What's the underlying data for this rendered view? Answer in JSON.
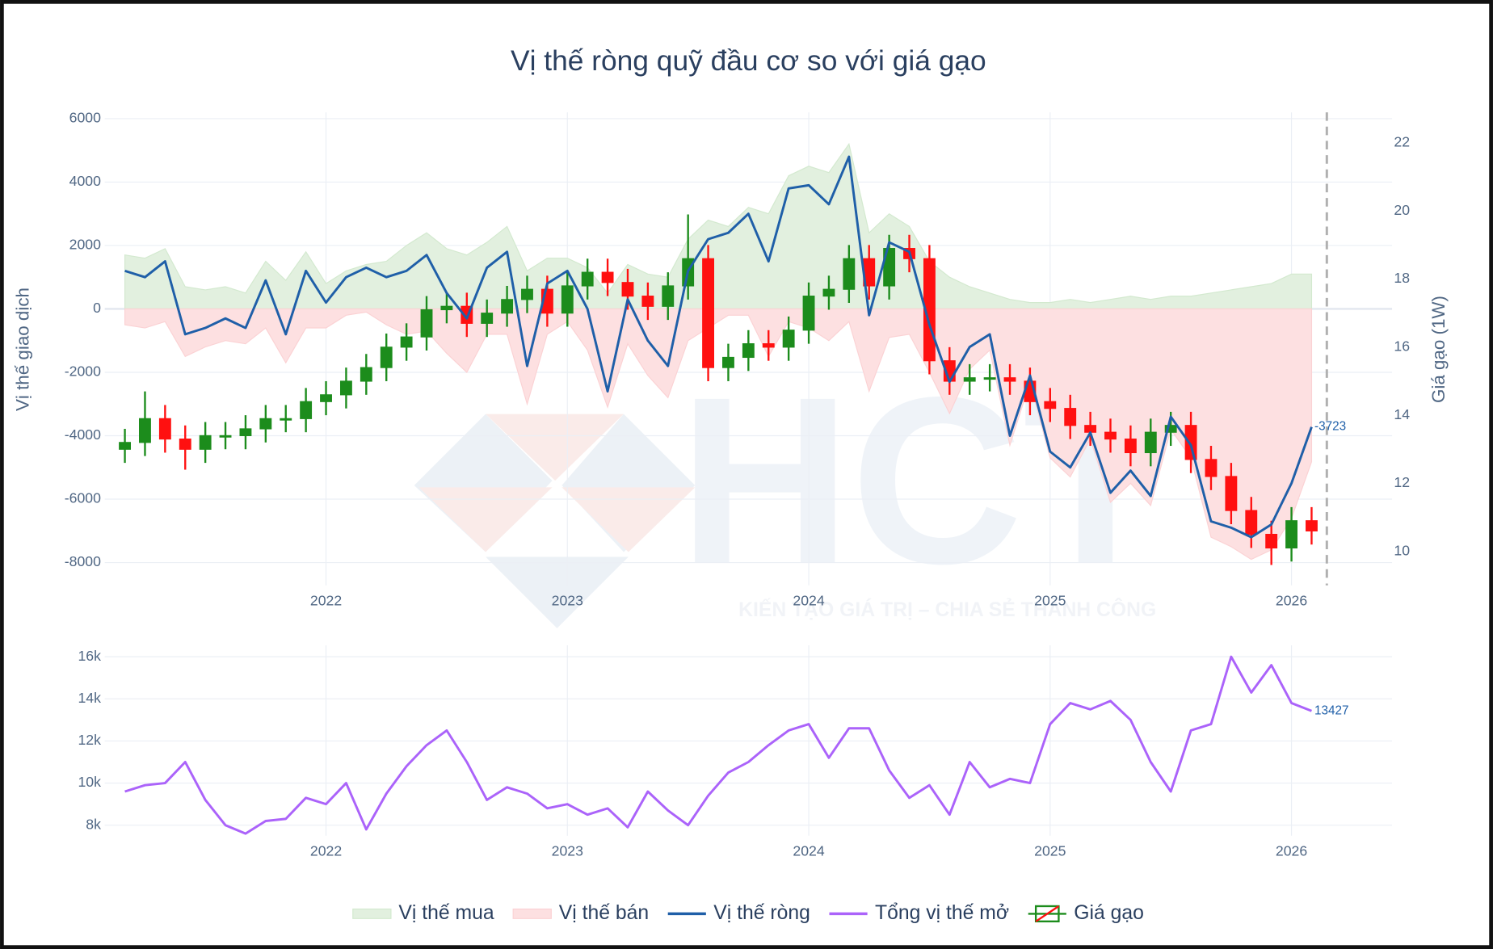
{
  "chart_data": [
    {
      "type": "combo",
      "title": "Vị thế ròng quỹ đầu cơ so với giá gạo",
      "y_label": "Vị thế giao dịch",
      "y2_label": "Giá gạo (1W)",
      "watermark": {
        "logo": "HCT",
        "tagline": "KIẾN TẠO GIÁ TRỊ – CHIA SẺ THÀNH CÔNG"
      },
      "legend": "bottom",
      "grid": true,
      "x": [
        "2021-03",
        "2021-04",
        "2021-05",
        "2021-06",
        "2021-07",
        "2021-08",
        "2021-09",
        "2021-10",
        "2021-11",
        "2021-12",
        "2022-01",
        "2022-02",
        "2022-03",
        "2022-04",
        "2022-05",
        "2022-06",
        "2022-07",
        "2022-08",
        "2022-09",
        "2022-10",
        "2022-11",
        "2022-12",
        "2023-01",
        "2023-02",
        "2023-03",
        "2023-04",
        "2023-05",
        "2023-06",
        "2023-07",
        "2023-08",
        "2023-09",
        "2023-10",
        "2023-11",
        "2023-12",
        "2024-01",
        "2024-02",
        "2024-03",
        "2024-04",
        "2024-05",
        "2024-06",
        "2024-07",
        "2024-08",
        "2024-09",
        "2024-10",
        "2024-11",
        "2024-12",
        "2025-01",
        "2025-02",
        "2025-03",
        "2025-04",
        "2025-05",
        "2025-06",
        "2025-07",
        "2025-08",
        "2025-09",
        "2025-10",
        "2025-11",
        "2025-12",
        "2026-01",
        "2026-02"
      ],
      "xlim": [
        "2021-02",
        "2026-06"
      ],
      "xticks": [
        {
          "value": "2022-01",
          "label": "2022"
        },
        {
          "value": "2023-01",
          "label": "2023"
        },
        {
          "value": "2024-01",
          "label": "2024"
        },
        {
          "value": "2025-01",
          "label": "2025"
        },
        {
          "value": "2026-01",
          "label": "2026"
        }
      ],
      "ylim": [
        -8720,
        6200
      ],
      "yticks": [
        -8000,
        -6000,
        -4000,
        -2000,
        0,
        2000,
        4000,
        6000
      ],
      "y2lim": [
        9,
        22.9
      ],
      "y2ticks": [
        10,
        12,
        14,
        16,
        18,
        20,
        22
      ],
      "series": [
        {
          "name": "Vị thế mua",
          "type": "area",
          "color": "#e2f0df",
          "line_color": "#d3e9cf",
          "values": [
            1700,
            1600,
            1900,
            700,
            600,
            700,
            500,
            1500,
            900,
            1800,
            800,
            1200,
            1400,
            1500,
            2000,
            2400,
            1900,
            1700,
            2100,
            2600,
            1200,
            1600,
            1600,
            1300,
            500,
            1400,
            1100,
            1000,
            2200,
            2800,
            2600,
            3200,
            3000,
            4200,
            4500,
            4300,
            5200,
            2400,
            3000,
            2600,
            1500,
            1000,
            700,
            500,
            300,
            200,
            200,
            300,
            200,
            300,
            400,
            300,
            400,
            400,
            500,
            600,
            700,
            800,
            1100,
            1100
          ]
        },
        {
          "name": "Vị thế bán",
          "type": "area",
          "color": "#fde0e1",
          "line_color": "#fbd2d4",
          "values": [
            -500,
            -600,
            -400,
            -1500,
            -1200,
            -1000,
            -1100,
            -600,
            -1700,
            -600,
            -600,
            -200,
            -100,
            -500,
            -800,
            -700,
            -1400,
            -2000,
            -800,
            -800,
            -3000,
            -800,
            -400,
            -1300,
            -3100,
            -1100,
            -2100,
            -2800,
            -1000,
            -600,
            -200,
            -200,
            -1500,
            -400,
            -600,
            -1000,
            -400,
            -2600,
            -900,
            -800,
            -2000,
            -3300,
            -1900,
            -1300,
            -4300,
            -2300,
            -4700,
            -5300,
            -4100,
            -6100,
            -5500,
            -6200,
            -3800,
            -4700,
            -7200,
            -7500,
            -7900,
            -7600,
            -6600,
            -4823
          ]
        },
        {
          "name": "Vị thế ròng",
          "type": "line",
          "color": "#1f5fa8",
          "label_last": true,
          "values": [
            1200,
            1000,
            1500,
            -800,
            -600,
            -300,
            -600,
            900,
            -800,
            1200,
            200,
            1000,
            1300,
            1000,
            1200,
            1700,
            500,
            -300,
            1300,
            1800,
            -1800,
            800,
            1200,
            0,
            -2600,
            300,
            -1000,
            -1800,
            1200,
            2200,
            2400,
            3000,
            1500,
            3800,
            3900,
            3300,
            4800,
            -200,
            2100,
            1800,
            -500,
            -2300,
            -1200,
            -800,
            -4000,
            -2100,
            -4500,
            -5000,
            -3900,
            -5800,
            -5100,
            -5900,
            -3400,
            -4300,
            -6700,
            -6900,
            -7200,
            -6800,
            -5500,
            -3723
          ]
        },
        {
          "name": "Giá gạo",
          "type": "candlestick",
          "axis": "y2",
          "increasing_color": "#1c8c1c",
          "decreasing_color": "#ff1010",
          "open": [
            13.0,
            13.2,
            13.9,
            13.3,
            13.0,
            13.4,
            13.4,
            13.6,
            13.9,
            13.9,
            14.4,
            14.6,
            15.0,
            15.4,
            16.0,
            16.3,
            17.1,
            17.2,
            16.7,
            17.0,
            17.4,
            17.7,
            17.0,
            17.8,
            18.2,
            17.9,
            17.5,
            17.2,
            17.8,
            18.6,
            15.4,
            15.7,
            16.1,
            16.0,
            16.5,
            17.5,
            17.7,
            18.6,
            17.8,
            18.9,
            18.6,
            15.6,
            15.0,
            15.1,
            15.1,
            15.0,
            14.4,
            14.2,
            13.7,
            13.5,
            13.3,
            12.9,
            13.5,
            13.7,
            12.7,
            12.2,
            11.2,
            10.5,
            10.1,
            10.9
          ],
          "high": [
            13.6,
            14.7,
            14.3,
            13.7,
            13.8,
            13.8,
            14.0,
            14.3,
            14.3,
            14.8,
            15.0,
            15.4,
            15.8,
            16.4,
            16.7,
            17.5,
            17.6,
            17.6,
            17.4,
            17.8,
            18.1,
            18.1,
            18.2,
            18.6,
            18.6,
            18.3,
            17.9,
            18.2,
            19.9,
            19.0,
            16.1,
            16.5,
            16.5,
            16.9,
            17.9,
            18.1,
            19.0,
            19.0,
            19.3,
            19.3,
            19.0,
            16.0,
            15.5,
            15.5,
            15.5,
            15.4,
            14.8,
            14.6,
            14.1,
            13.9,
            13.7,
            13.9,
            14.1,
            14.1,
            13.1,
            12.6,
            11.6,
            10.9,
            11.3,
            11.3
          ],
          "low": [
            12.6,
            12.8,
            12.9,
            12.4,
            12.6,
            13.0,
            13.0,
            13.2,
            13.5,
            13.5,
            14.0,
            14.2,
            14.6,
            15.0,
            15.6,
            15.9,
            16.7,
            16.3,
            16.3,
            16.6,
            17.0,
            16.6,
            16.6,
            17.4,
            17.5,
            17.1,
            16.8,
            16.8,
            17.4,
            15.0,
            15.0,
            15.3,
            15.6,
            15.6,
            16.1,
            17.1,
            17.3,
            17.4,
            17.4,
            18.2,
            15.2,
            14.6,
            14.6,
            14.7,
            14.6,
            14.0,
            13.8,
            13.3,
            13.1,
            12.9,
            12.5,
            12.5,
            13.1,
            12.3,
            11.8,
            10.8,
            10.1,
            9.6,
            9.7,
            10.2
          ],
          "close": [
            13.2,
            13.9,
            13.3,
            13.0,
            13.4,
            13.4,
            13.6,
            13.9,
            13.9,
            14.4,
            14.6,
            15.0,
            15.4,
            16.0,
            16.3,
            17.1,
            17.2,
            16.7,
            17.0,
            17.4,
            17.7,
            17.0,
            17.8,
            18.2,
            17.9,
            17.5,
            17.2,
            17.8,
            18.6,
            15.4,
            15.7,
            16.1,
            16.0,
            16.5,
            17.5,
            17.7,
            18.6,
            17.8,
            18.9,
            18.6,
            15.6,
            15.0,
            15.1,
            15.1,
            15.0,
            14.4,
            14.2,
            13.7,
            13.5,
            13.3,
            12.9,
            13.5,
            13.7,
            12.7,
            12.2,
            11.2,
            10.5,
            10.1,
            10.9,
            10.6
          ]
        }
      ]
    },
    {
      "type": "line",
      "grid": true,
      "x": [
        "2021-03",
        "2021-04",
        "2021-05",
        "2021-06",
        "2021-07",
        "2021-08",
        "2021-09",
        "2021-10",
        "2021-11",
        "2021-12",
        "2022-01",
        "2022-02",
        "2022-03",
        "2022-04",
        "2022-05",
        "2022-06",
        "2022-07",
        "2022-08",
        "2022-09",
        "2022-10",
        "2022-11",
        "2022-12",
        "2023-01",
        "2023-02",
        "2023-03",
        "2023-04",
        "2023-05",
        "2023-06",
        "2023-07",
        "2023-08",
        "2023-09",
        "2023-10",
        "2023-11",
        "2023-12",
        "2024-01",
        "2024-02",
        "2024-03",
        "2024-04",
        "2024-05",
        "2024-06",
        "2024-07",
        "2024-08",
        "2024-09",
        "2024-10",
        "2024-11",
        "2024-12",
        "2025-01",
        "2025-02",
        "2025-03",
        "2025-04",
        "2025-05",
        "2025-06",
        "2025-07",
        "2025-08",
        "2025-09",
        "2025-10",
        "2025-11",
        "2025-12",
        "2026-01",
        "2026-02"
      ],
      "xlim": [
        "2021-02",
        "2026-06"
      ],
      "xticks": [
        {
          "value": "2022-01",
          "label": "2022"
        },
        {
          "value": "2023-01",
          "label": "2023"
        },
        {
          "value": "2024-01",
          "label": "2024"
        },
        {
          "value": "2025-01",
          "label": "2025"
        },
        {
          "value": "2026-01",
          "label": "2026"
        }
      ],
      "ylim": [
        7500,
        16540
      ],
      "yticks": [
        {
          "value": 8000,
          "label": "8k"
        },
        {
          "value": 10000,
          "label": "10k"
        },
        {
          "value": 12000,
          "label": "12k"
        },
        {
          "value": 14000,
          "label": "14k"
        },
        {
          "value": 16000,
          "label": "16k"
        }
      ],
      "series": [
        {
          "name": "Tổng vị thế mở",
          "type": "line",
          "color": "#ab63fa",
          "label_last": true,
          "values": [
            9600,
            9900,
            10000,
            11000,
            9200,
            8000,
            7600,
            8200,
            8300,
            9300,
            9000,
            10000,
            7800,
            9500,
            10800,
            11800,
            12500,
            11000,
            9200,
            9800,
            9500,
            8800,
            9000,
            8500,
            8800,
            7900,
            9600,
            8700,
            8000,
            9400,
            10500,
            11000,
            11800,
            12500,
            12800,
            11200,
            12600,
            12600,
            10600,
            9300,
            9900,
            8500,
            11000,
            9800,
            10200,
            10000,
            12800,
            13800,
            13500,
            13900,
            13000,
            11000,
            9600,
            12500,
            12800,
            16000,
            14300,
            15600,
            13800,
            13427
          ]
        }
      ]
    }
  ]
}
